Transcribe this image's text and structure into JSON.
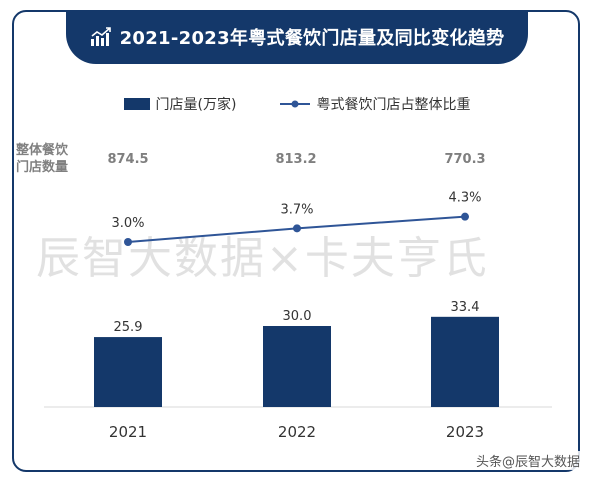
{
  "header": {
    "title": "2021-2023年粤式餐饮门店量及同比变化趋势"
  },
  "side_label_line1": "整体餐饮",
  "side_label_line2": "门店数量",
  "watermark": "辰智大数据×卡夫亨氏",
  "source": "头条@辰智大数据",
  "colors": {
    "bar": "#14386a",
    "line": "#2f5597",
    "frame": "#14386a"
  },
  "chart_data": {
    "type": "bar",
    "categories": [
      "2021",
      "2022",
      "2023"
    ],
    "store_counts": [
      "874.5",
      "813.2",
      "770.3"
    ],
    "series": [
      {
        "name": "门店量(万家)",
        "type": "bar",
        "values": [
          25.9,
          30.0,
          33.4
        ],
        "labels": [
          "25.9",
          "30.0",
          "33.4"
        ]
      },
      {
        "name": "粤式餐饮门店占整体比重",
        "type": "line",
        "values": [
          3.0,
          3.7,
          4.3
        ],
        "labels": [
          "3.0%",
          "3.7%",
          "4.3%"
        ]
      }
    ],
    "legend_position": "top",
    "grid": false
  }
}
